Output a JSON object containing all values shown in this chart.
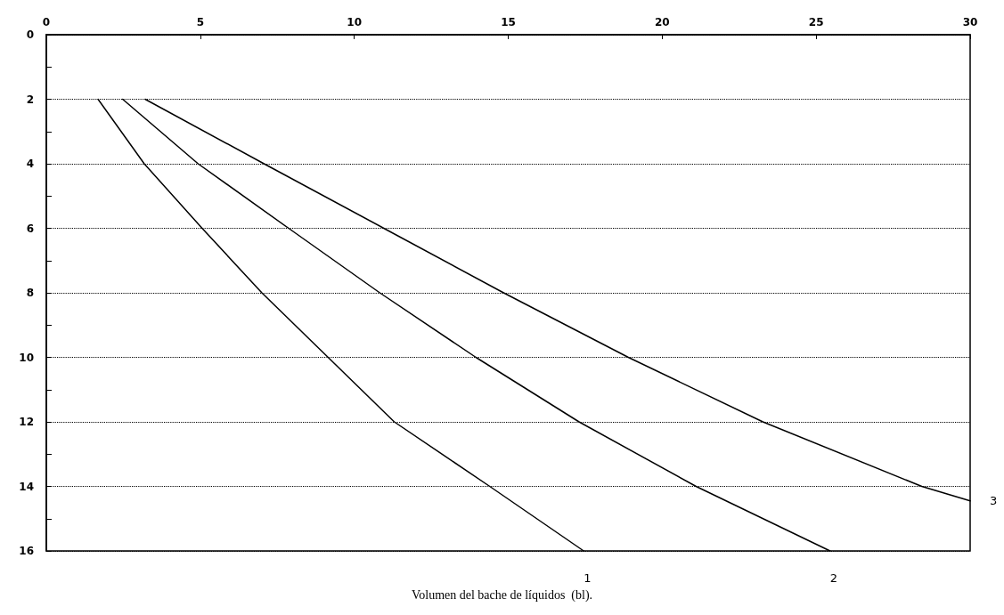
{
  "chart_data": {
    "type": "line",
    "xlabel": "Volumen del bache de líquidos  (bl).",
    "xlim": [
      0,
      30
    ],
    "xticks": [
      0,
      5,
      10,
      15,
      20,
      25,
      30
    ],
    "ylim": [
      16,
      0
    ],
    "yticks": [
      0,
      {
        "value": 1,
        "label": null
      },
      2,
      {
        "value": 3,
        "label": null
      },
      4,
      {
        "value": 5,
        "label": null
      },
      6,
      {
        "value": 7,
        "label": null
      },
      8,
      {
        "value": 9,
        "label": null
      },
      10,
      {
        "value": 11,
        "label": null
      },
      12,
      {
        "value": 13,
        "label": null
      },
      14,
      {
        "value": 15,
        "label": null
      },
      16
    ],
    "grid": "y",
    "legend": false,
    "marker": "none",
    "line_style": "solid",
    "series": [
      {
        "name": "1",
        "color": "#000000",
        "x": [
          1.68,
          3.18,
          5.06,
          7.0,
          9.15,
          11.3,
          14.4,
          17.45
        ],
        "values": [
          2,
          4,
          6,
          8,
          10,
          12,
          14,
          16
        ]
      },
      {
        "name": "2",
        "color": "#000000",
        "x": [
          2.48,
          4.93,
          7.87,
          10.83,
          13.95,
          17.3,
          21.1,
          25.45
        ],
        "values": [
          2,
          4,
          6,
          8,
          10,
          12,
          14,
          16
        ]
      },
      {
        "name": "3",
        "color": "#000000",
        "x": [
          3.21,
          7.07,
          10.96,
          14.85,
          18.9,
          23.27,
          28.43,
          30
        ],
        "values": [
          2,
          4,
          6,
          8,
          10,
          12,
          14,
          14.45
        ]
      }
    ]
  }
}
